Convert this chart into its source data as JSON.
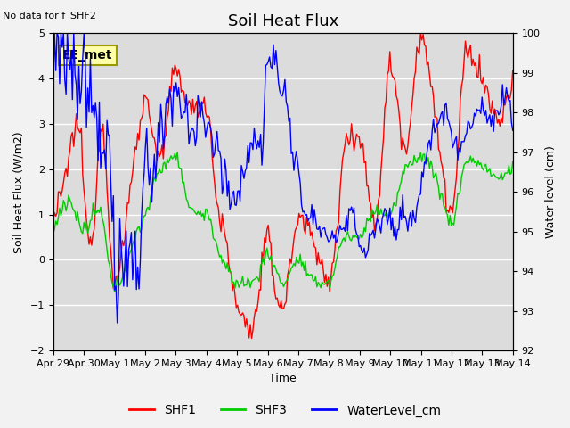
{
  "title": "Soil Heat Flux",
  "top_left_text": "No data for f_SHF2",
  "ylabel_left": "Soil Heat Flux (W/m2)",
  "ylabel_right": "Water level (cm)",
  "xlabel": "Time",
  "ylim_left": [
    -2.0,
    5.0
  ],
  "ylim_right": [
    92.0,
    100.0
  ],
  "xtick_labels": [
    "Apr 29",
    "Apr 30",
    "May 1",
    "May 2",
    "May 3",
    "May 4",
    "May 5",
    "May 6",
    "May 7",
    "May 8",
    "May 9",
    "May 10",
    "May 11",
    "May 12",
    "May 13",
    "May 14"
  ],
  "annotation_box": "EE_met",
  "background_color": "#dcdcdc",
  "grid_color": "#ffffff",
  "color_SHF1": "#ff0000",
  "color_SHF3": "#00cc00",
  "color_WaterLevel": "#0000ff",
  "line_width": 1.0,
  "title_fontsize": 13,
  "label_fontsize": 9,
  "tick_fontsize": 8,
  "fig_width": 6.4,
  "fig_height": 4.8,
  "dpi": 100
}
